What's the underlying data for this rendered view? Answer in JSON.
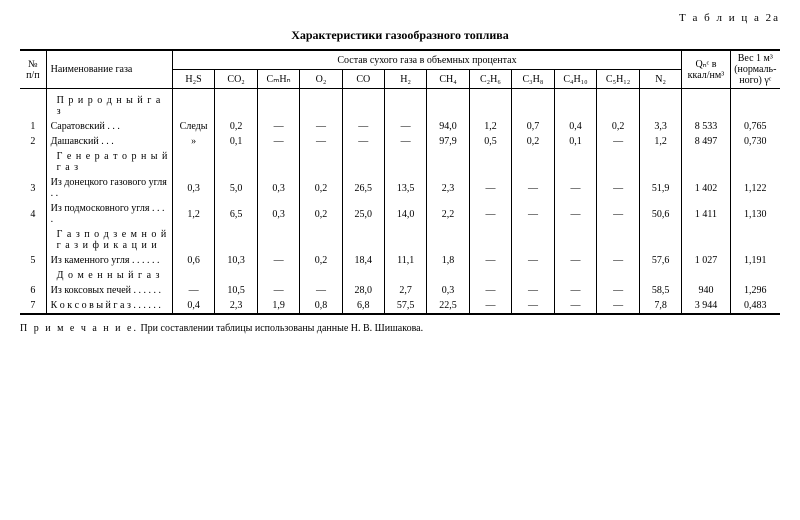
{
  "table_label": "Т а б л и ц а  2а",
  "title": "Характеристики газообразного топлива",
  "header": {
    "num": "№ п/п",
    "name": "Наименование газа",
    "group": "Состав сухого газа в объемных процентах",
    "cols": [
      "H₂S",
      "CO₂",
      "CₘHₙ",
      "O₂",
      "CO",
      "H₂",
      "CH₄",
      "C₂H₆",
      "C₃H₈",
      "C₄H₁₀",
      "C₅H₁₂",
      "N₂"
    ],
    "q": "Qₙᶜ в ккал/нм³",
    "weight": "Вес 1 м³ (нор­маль­но­го) γᶜ"
  },
  "sections": {
    "s1": "П р и р о д н ы й  г а з",
    "s2": "Г е н е р а т о р ­н ы й  г а з",
    "s3": "Г а з  п о д з е м ­н о й  г а з и ф и ­к а ц и и",
    "s4": "Д о м е н н ы й  г а з"
  },
  "rows": {
    "r1": {
      "n": "1",
      "name": "Саратовский  . . .",
      "v": [
        "Следы",
        "0,2",
        "—",
        "—",
        "—",
        "—",
        "94,0",
        "1,2",
        "0,7",
        "0,4",
        "0,2",
        "3,3"
      ],
      "q": "8 533",
      "w": "0,765"
    },
    "r2": {
      "n": "2",
      "name": "Дашавский  . . .",
      "v": [
        "»",
        "0,1",
        "—",
        "—",
        "—",
        "—",
        "97,9",
        "0,5",
        "0,2",
        "0,1",
        "—",
        "1,2"
      ],
      "q": "8 497",
      "w": "0,730"
    },
    "r3": {
      "n": "3",
      "name": "Из донецкого га­зового угля . .",
      "v": [
        "0,3",
        "5,0",
        "0,3",
        "0,2",
        "26,5",
        "13,5",
        "2,3",
        "—",
        "—",
        "—",
        "—",
        "51,9"
      ],
      "q": "1 402",
      "w": "1,122"
    },
    "r4": {
      "n": "4",
      "name": "Из подмосковно­го угля . . . .",
      "v": [
        "1,2",
        "6,5",
        "0,3",
        "0,2",
        "25,0",
        "14,0",
        "2,2",
        "—",
        "—",
        "—",
        "—",
        "50,6"
      ],
      "q": "1 411",
      "w": "1,130"
    },
    "r5": {
      "n": "5",
      "name": "Из каменного уг­ля  . . . . . .",
      "v": [
        "0,6",
        "10,3",
        "—",
        "0,2",
        "18,4",
        "11,1",
        "1,8",
        "—",
        "—",
        "—",
        "—",
        "57,6"
      ],
      "q": "1 027",
      "w": "1,191"
    },
    "r6": {
      "n": "6",
      "name": "Из коксовых пе­чей  . . . . . .",
      "v": [
        "—",
        "10,5",
        "—",
        "—",
        "28,0",
        "2,7",
        "0,3",
        "—",
        "—",
        "—",
        "—",
        "58,5"
      ],
      "q": "940",
      "w": "1,296"
    },
    "r7": {
      "n": "7",
      "name": "К о к с о в ы й  г а з . . . . . .",
      "v": [
        "0,4",
        "2,3",
        "1,9",
        "0,8",
        "6,8",
        "57,5",
        "22,5",
        "—",
        "—",
        "—",
        "—",
        "7,8"
      ],
      "q": "3 944",
      "w": "0,483"
    }
  },
  "footnote_lead": "П р и м е ч а н и е.",
  "footnote": "При составлении таблицы использованы данные Н. В. Шишакова.",
  "style": {
    "font_family": "Times New Roman",
    "bg": "#ffffff",
    "fg": "#000000",
    "border": "#000000",
    "title_fontsize": 12,
    "body_fontsize": 10
  }
}
